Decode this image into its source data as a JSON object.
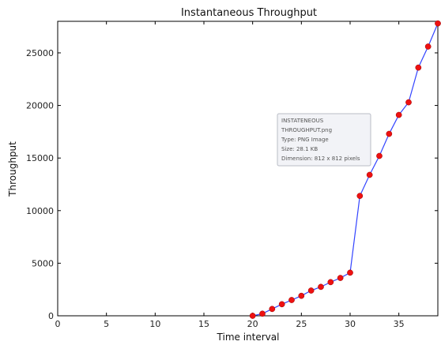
{
  "chart_data": {
    "type": "line",
    "title": "Instantaneous Throughput",
    "xlabel": "Time interval",
    "ylabel": "Throughput",
    "xlim": [
      0,
      39
    ],
    "ylim": [
      0,
      28000
    ],
    "xticks": [
      0,
      5,
      10,
      15,
      20,
      25,
      30,
      35
    ],
    "yticks": [
      0,
      5000,
      10000,
      15000,
      20000,
      25000
    ],
    "grid": false,
    "legend": "none",
    "series": [
      {
        "line_color": "#3344ff",
        "marker_color": "#ee1111",
        "x": [
          20,
          21,
          22,
          23,
          24,
          25,
          26,
          27,
          28,
          29,
          30,
          31,
          32,
          33,
          34,
          35,
          36,
          37,
          38,
          39
        ],
        "y": [
          0,
          200,
          650,
          1100,
          1500,
          1900,
          2400,
          2750,
          3200,
          3600,
          4100,
          11400,
          13400,
          15200,
          17300,
          19100,
          20300,
          23600,
          25600,
          27800
        ]
      }
    ]
  },
  "tooltip": {
    "lines": [
      "INSTATENEOUS",
      "THROUGHPUT.png",
      "Type: PNG Image",
      "Size: 28.1 KB",
      "Dimension: 812 x 812 pixels"
    ]
  }
}
